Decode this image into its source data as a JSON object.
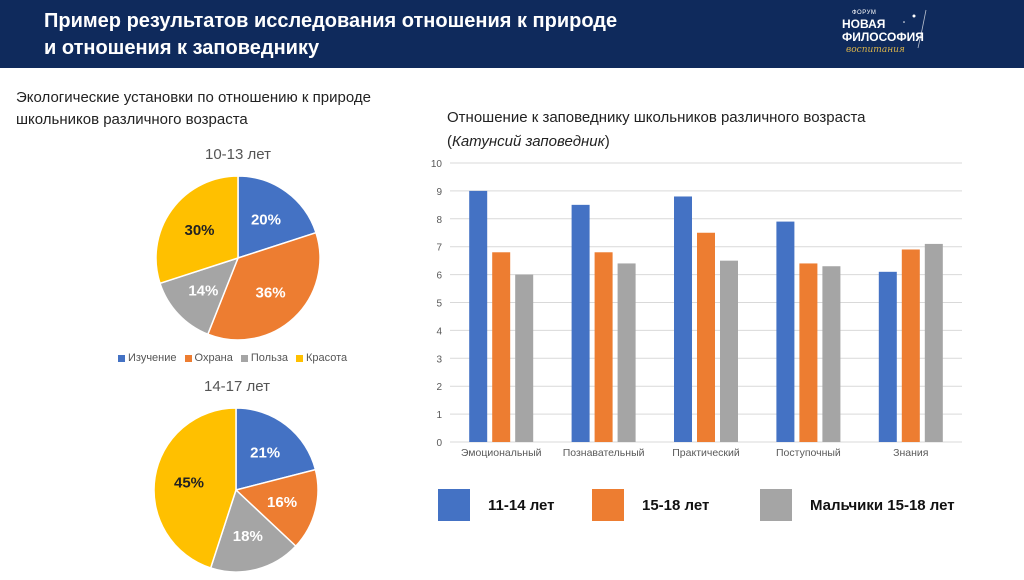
{
  "header": {
    "title_line1": "Пример результатов исследования отношения к природе",
    "title_line2": "и отношения к заповеднику",
    "logo_small": "ФОРУМ",
    "logo_line1": "НОВАЯ",
    "logo_line2": "ФИЛОСОФИЯ",
    "logo_script": "воспитания"
  },
  "left_subtitle_line1": "Экологические установки по отношению к природе",
  "left_subtitle_line2": "школьников различного возраста",
  "right_subtitle_line1": "Отношение к заповеднику школьников различного возраста",
  "right_subtitle_line2_pre": "(",
  "right_subtitle_line2_italic": "Катунсий заповедник",
  "right_subtitle_line2_post": ")",
  "colors": {
    "blue": "#4472c4",
    "orange": "#ed7d31",
    "gray": "#a5a5a5",
    "yellow": "#ffc000",
    "header_bg": "#0f2a5c"
  },
  "chart_data": [
    {
      "type": "pie",
      "title": "10-13 лет",
      "categories": [
        "Изучение",
        "Охрана",
        "Польза",
        "Красота"
      ],
      "values": [
        20,
        36,
        14,
        30
      ],
      "labels": [
        "20%",
        "36%",
        "14%",
        "30%"
      ],
      "legend_position": "bottom"
    },
    {
      "type": "pie",
      "title": "14-17 лет",
      "categories": [
        "Изучение",
        "Охрана",
        "Польза",
        "Красота"
      ],
      "values": [
        21,
        16,
        18,
        45
      ],
      "labels": [
        "21%",
        "16%",
        "18%",
        "45%"
      ],
      "legend_position": "none"
    },
    {
      "type": "bar",
      "title": "",
      "categories": [
        "Эмоциональный",
        "Познавательный",
        "Практический",
        "Поступочный",
        "Знания"
      ],
      "series": [
        {
          "name": "11-14 лет",
          "values": [
            9.0,
            8.5,
            8.8,
            7.9,
            6.1
          ]
        },
        {
          "name": "15-18 лет",
          "values": [
            6.8,
            6.8,
            7.5,
            6.4,
            6.9
          ]
        },
        {
          "name": "Мальчики 15-18 лет",
          "values": [
            6.0,
            6.4,
            6.5,
            6.3,
            7.1
          ]
        }
      ],
      "ylim": [
        0,
        10
      ],
      "yticks": [
        "0",
        "1",
        "2",
        "3",
        "4",
        "5",
        "6",
        "7",
        "8",
        "9",
        "10"
      ],
      "grid": true,
      "legend_position": "bottom"
    }
  ]
}
